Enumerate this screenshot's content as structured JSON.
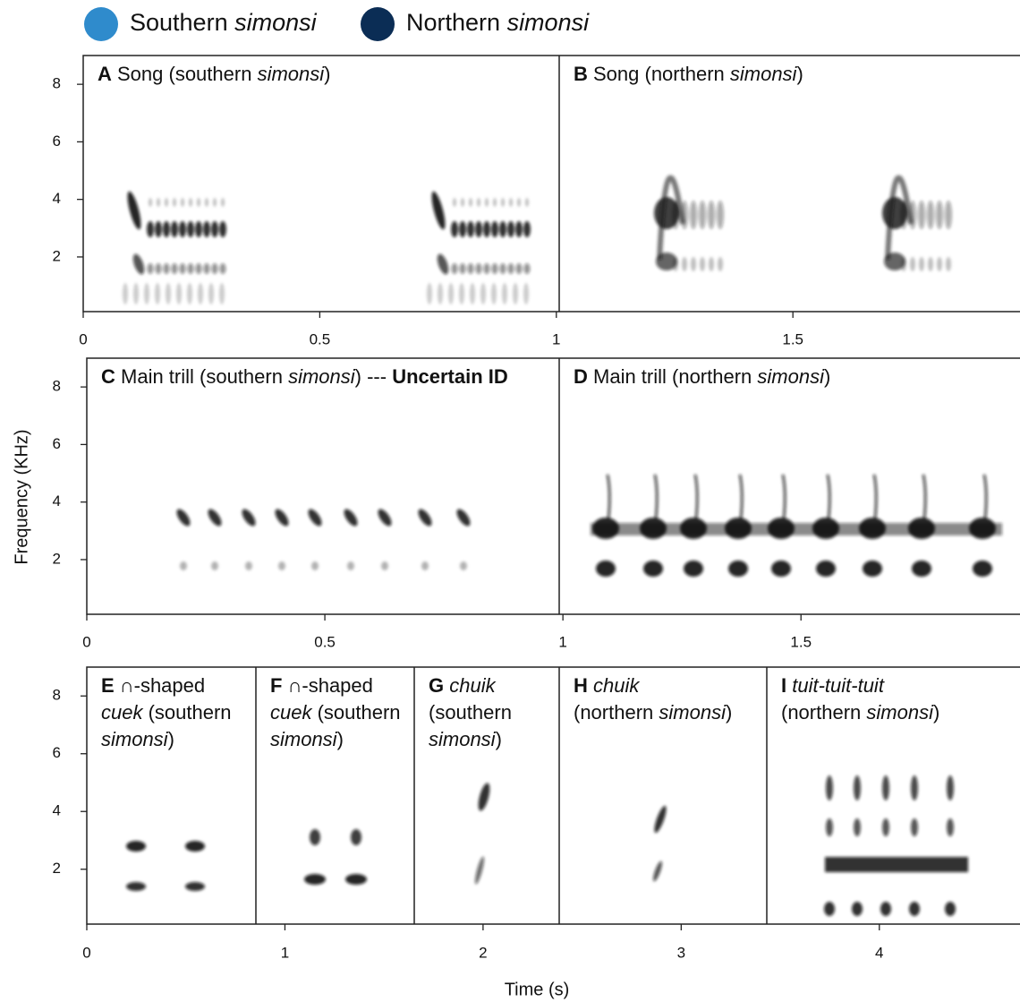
{
  "legend": [
    {
      "color": "#2f8bcc",
      "label": [
        {
          "text": "Southern "
        },
        {
          "text": "simonsi",
          "style": "italic"
        }
      ]
    },
    {
      "color": "#0b2d55",
      "label": [
        {
          "text": "Northern "
        },
        {
          "text": "simonsi",
          "style": "italic"
        }
      ]
    }
  ],
  "y_label": "Frequency (KHz)",
  "x_label": "Time (s)",
  "rows": [
    {
      "xlim": [
        0,
        1.98
      ],
      "xticks": [
        0,
        0.5,
        1,
        1.5
      ],
      "ylim": [
        0.1,
        9
      ],
      "yticks": [
        2,
        4,
        6,
        8
      ],
      "panels": [
        {
          "title": [
            [
              {
                "text": "A",
                "style": "bold"
              },
              {
                "text": " Song (southern "
              },
              {
                "text": "simonsi",
                "style": "italic"
              },
              {
                "text": ")"
              }
            ]
          ]
        },
        {
          "title": [
            [
              {
                "text": "B",
                "style": "bold"
              },
              {
                "text": " Song (northern "
              },
              {
                "text": "simonsi",
                "style": "italic"
              },
              {
                "text": ")"
              }
            ]
          ]
        }
      ]
    },
    {
      "xlim": [
        0,
        1.96
      ],
      "xticks": [
        0,
        0.5,
        1,
        1.5
      ],
      "ylim": [
        0.1,
        9
      ],
      "yticks": [
        2,
        4,
        6,
        8
      ],
      "panels": [
        {
          "title": [
            [
              {
                "text": "C",
                "style": "bold"
              },
              {
                "text": " Main trill (southern "
              },
              {
                "text": "simonsi",
                "style": "italic"
              },
              {
                "text": ") --- "
              },
              {
                "text": "Uncertain ID",
                "style": "bold"
              }
            ]
          ]
        },
        {
          "title": [
            [
              {
                "text": "D",
                "style": "bold"
              },
              {
                "text": " Main trill (northern "
              },
              {
                "text": "simonsi",
                "style": "italic"
              },
              {
                "text": ")"
              }
            ]
          ]
        }
      ]
    },
    {
      "xlim": [
        0,
        4.71
      ],
      "xticks": [
        0,
        1,
        2,
        3,
        4
      ],
      "ylim": [
        0.1,
        9
      ],
      "yticks": [
        2,
        4,
        6,
        8
      ],
      "panels": [
        {
          "title": [
            [
              {
                "text": "E",
                "style": "bold"
              },
              {
                "text": " ∩-shaped"
              }
            ],
            [
              {
                "text": "cuek",
                "style": "italic"
              },
              {
                "text": " (southern"
              }
            ],
            [
              {
                "text": "simonsi",
                "style": "italic"
              },
              {
                "text": ")"
              }
            ]
          ]
        },
        {
          "title": [
            [
              {
                "text": "F",
                "style": "bold"
              },
              {
                "text": " ∩-shaped"
              }
            ],
            [
              {
                "text": "cuek",
                "style": "italic"
              },
              {
                "text": " (southern"
              }
            ],
            [
              {
                "text": "simonsi",
                "style": "italic"
              },
              {
                "text": ")"
              }
            ]
          ]
        },
        {
          "title": [
            [
              {
                "text": "G",
                "style": "bold"
              },
              {
                "text": " chuik",
                "style": "italic"
              }
            ],
            [
              {
                "text": "(southern"
              }
            ],
            [
              {
                "text": "simonsi",
                "style": "italic"
              },
              {
                "text": ")"
              }
            ]
          ]
        },
        {
          "title": [
            [
              {
                "text": "H",
                "style": "bold"
              },
              {
                "text": " chuik",
                "style": "italic"
              }
            ],
            [
              {
                "text": "(northern "
              },
              {
                "text": "simonsi",
                "style": "italic"
              },
              {
                "text": ")"
              }
            ]
          ]
        },
        {
          "title": [
            [
              {
                "text": "I",
                "style": "bold"
              },
              {
                "text": " tuit-tuit-tuit",
                "style": "italic"
              }
            ],
            [
              {
                "text": "(northern "
              },
              {
                "text": "simonsi",
                "style": "italic"
              },
              {
                "text": ")"
              }
            ]
          ]
        }
      ]
    }
  ]
}
